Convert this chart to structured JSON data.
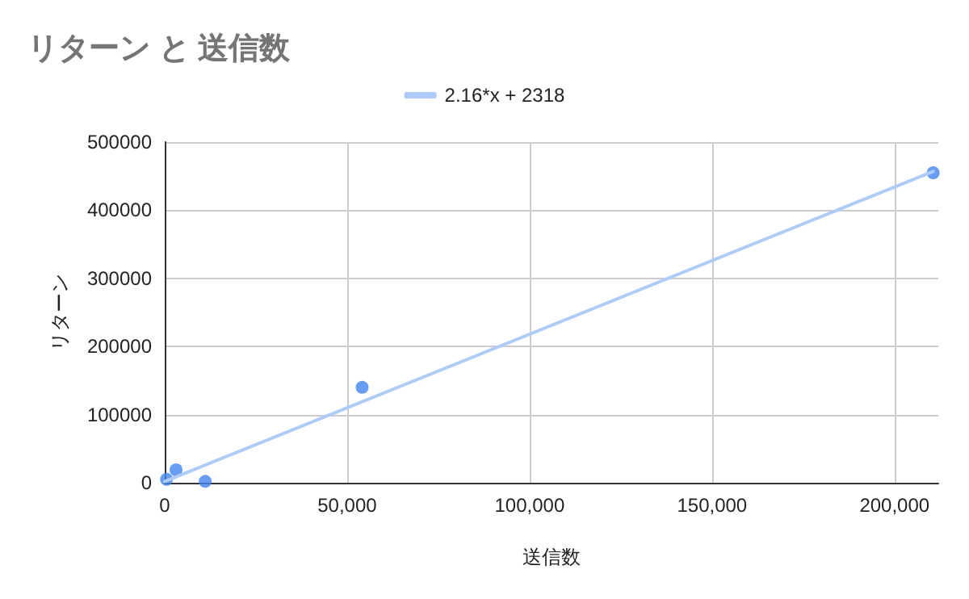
{
  "chart_data": {
    "type": "scatter",
    "title": "リターン と 送信数",
    "xlabel": "送信数",
    "ylabel": "リターン",
    "series": [
      {
        "color": "#4285f4",
        "x": [
          500,
          3100,
          11100,
          54100,
          210600
        ],
        "values": [
          5000,
          19000,
          2000,
          140000,
          455000
        ]
      },
      {
        "type": "line",
        "name": "2.16*x + 2318",
        "color": "#aecbfa",
        "x": [
          0,
          210600
        ],
        "values": [
          2000,
          457000
        ],
        "marker": "none"
      }
    ],
    "xlim": [
      0,
      212000
    ],
    "xticks": [
      0,
      {
        "value": 50000,
        "label": "50,000"
      },
      {
        "value": 100000,
        "label": "100,000"
      },
      {
        "value": 150000,
        "label": "150,000"
      },
      {
        "value": 200000,
        "label": "200,000"
      }
    ],
    "ylim": [
      0,
      500000
    ],
    "yticks": [
      0,
      100000,
      200000,
      300000,
      400000,
      500000
    ],
    "grid": true,
    "legend": "top",
    "marker": "circle"
  }
}
